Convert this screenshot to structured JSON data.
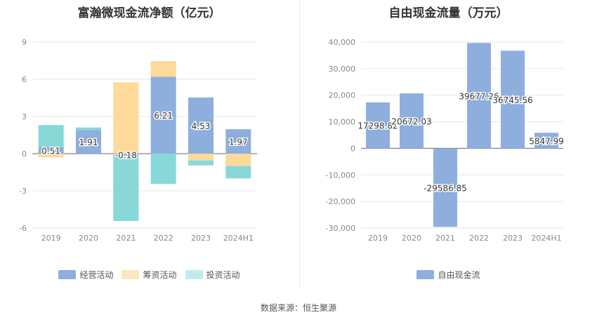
{
  "source_text": "数据来源：恒生聚源",
  "colors": {
    "operating": "#8eaedd",
    "financing": "#fdd99a",
    "investing": "#88d8d8",
    "fcf": "#8eaedd"
  },
  "chart_data": [
    {
      "type": "bar",
      "title": "富瀚微现金流净额（亿元）",
      "categories": [
        "2019",
        "2020",
        "2021",
        "2022",
        "2023",
        "2024H1"
      ],
      "ylim": [
        -6,
        9
      ],
      "yticks": [
        -6,
        -3,
        0,
        3,
        6,
        9
      ],
      "ytick_labels": [
        "-6",
        "-3",
        "0",
        "3",
        "6",
        "9"
      ],
      "stacked": true,
      "legend_position": "bottom",
      "series": [
        {
          "name": "经营活动",
          "color": "#8eaedd",
          "values": [
            0.51,
            1.91,
            -0.18,
            6.21,
            4.53,
            1.97
          ]
        },
        {
          "name": "筹资活动",
          "color": "#fdd99a",
          "values": [
            -0.3,
            0.0,
            5.75,
            1.25,
            -0.55,
            -1.0
          ]
        },
        {
          "name": "投资活动",
          "color": "#88d8d8",
          "values": [
            1.8,
            0.2,
            -5.25,
            -2.45,
            -0.4,
            -1.0
          ]
        }
      ],
      "data_labels": [
        "0.51",
        "1.91",
        "-0.18",
        "6.21",
        "4.53",
        "1.97"
      ]
    },
    {
      "type": "bar",
      "title": "自由现金流量（万元）",
      "categories": [
        "2019",
        "2020",
        "2021",
        "2022",
        "2023",
        "2024H1"
      ],
      "ylim": [
        -30000,
        40000
      ],
      "yticks": [
        -30000,
        -20000,
        -10000,
        0,
        10000,
        20000,
        30000,
        40000
      ],
      "ytick_labels": [
        "-30,000",
        "-20,000",
        "-10,000",
        "0",
        "10,000",
        "20,000",
        "30,000",
        "40,000"
      ],
      "legend_position": "bottom",
      "series": [
        {
          "name": "自由现金流",
          "color": "#8eaedd",
          "values": [
            17298.82,
            20672.03,
            -29586.85,
            39677.26,
            36745.56,
            5847.99
          ]
        }
      ],
      "data_labels": [
        "17298.82",
        "20672.03",
        "-29586.85",
        "39677.26",
        "36745.56",
        "5847.99"
      ]
    }
  ]
}
